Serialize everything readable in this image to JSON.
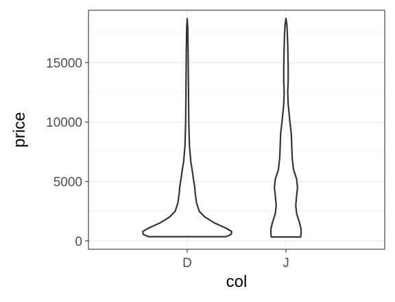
{
  "chart_data": {
    "type": "violin",
    "xlabel": "col",
    "ylabel": "price",
    "categories": [
      "D",
      "J"
    ],
    "ylim": [
      -700,
      19400
    ],
    "y_ticks": [
      0,
      5000,
      10000,
      15000
    ],
    "y_tick_labels": [
      "0",
      "5000",
      "10000",
      "15000"
    ],
    "grid": true,
    "legend": "none",
    "colors": {
      "outline": "#333333",
      "fill": "#ffffff",
      "grid": "#ebebeb",
      "panel_border": "#333333"
    },
    "series": [
      {
        "name": "D",
        "min": 357,
        "max": 18693,
        "density_profile": [
          [
            357,
            0.87
          ],
          [
            550,
            0.99
          ],
          [
            800,
            1.0
          ],
          [
            1100,
            0.86
          ],
          [
            1500,
            0.62
          ],
          [
            2000,
            0.4
          ],
          [
            2500,
            0.27
          ],
          [
            3200,
            0.21
          ],
          [
            4000,
            0.18
          ],
          [
            4500,
            0.17
          ],
          [
            5200,
            0.14
          ],
          [
            6000,
            0.11
          ],
          [
            6700,
            0.08
          ],
          [
            8000,
            0.05
          ],
          [
            10000,
            0.035
          ],
          [
            12000,
            0.03
          ],
          [
            14000,
            0.025
          ],
          [
            16000,
            0.02
          ],
          [
            18000,
            0.012
          ],
          [
            18693,
            0.0
          ]
        ]
      },
      {
        "name": "J",
        "min": 335,
        "max": 18710,
        "density_profile": [
          [
            335,
            0.33
          ],
          [
            600,
            0.34
          ],
          [
            1000,
            0.34
          ],
          [
            1600,
            0.3
          ],
          [
            2300,
            0.24
          ],
          [
            3000,
            0.22
          ],
          [
            3800,
            0.24
          ],
          [
            4500,
            0.26
          ],
          [
            5200,
            0.24
          ],
          [
            6000,
            0.17
          ],
          [
            7000,
            0.14
          ],
          [
            8000,
            0.13
          ],
          [
            9000,
            0.12
          ],
          [
            10000,
            0.09
          ],
          [
            11500,
            0.05
          ],
          [
            12500,
            0.04
          ],
          [
            13500,
            0.05
          ],
          [
            14500,
            0.05
          ],
          [
            15500,
            0.045
          ],
          [
            16500,
            0.04
          ],
          [
            17500,
            0.03
          ],
          [
            18200,
            0.02
          ],
          [
            18710,
            0.0
          ]
        ]
      }
    ]
  }
}
